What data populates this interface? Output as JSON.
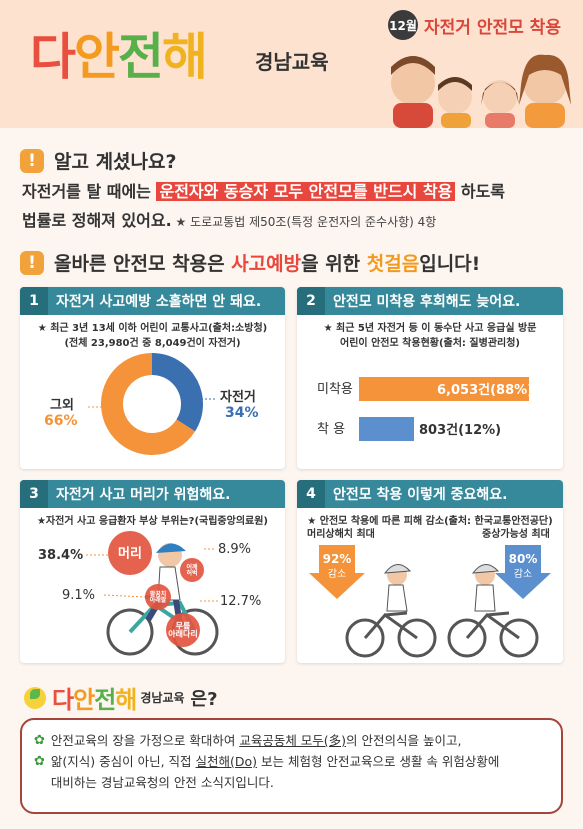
{
  "header": {
    "logo": [
      "다",
      "안",
      "전",
      "해"
    ],
    "logo_sub": "경남교육",
    "month": "12월",
    "month_title": "자전거 안전모 착용"
  },
  "section1": {
    "icon": "warning-icon",
    "title": "알고 계셨나요?",
    "line1_pre": "자전거를 탈 때에는 ",
    "line1_hl": "운전자와 동승자 모두 안전모를 반드시 착용",
    "line1_post": " 하도록",
    "line2": "법률로 정해져 있어요.",
    "line2_note": " ★ 도로교통법 제50조(특정 운전자의 준수사항) 4항"
  },
  "section2": {
    "icon": "warning-icon",
    "title_pre": "올바른 안전모 착용은 ",
    "title_red": "사고예방",
    "title_mid": "을 위한 ",
    "title_org": "첫걸음",
    "title_post": "입니다!"
  },
  "cards": [
    {
      "num": "1",
      "title": "자전거 사고예방 소홀하면 안 돼요.",
      "note1": "★ 최근 3년 13세 이하 어린이 교통사고(출처:소방청)",
      "note2": "(전체 23,980건 중 8,049건이 자전거)"
    },
    {
      "num": "2",
      "title": "안전모 미착용 후회해도 늦어요.",
      "note1": "★ 최근 5년 자전거 등 이 동수단 사고 응급실 방문",
      "note2": "어린이 안전모 착용현황(출처: 질병관리청)"
    },
    {
      "num": "3",
      "title": "자전거 사고 머리가 위험해요.",
      "note1": "★자전거 사고 응급환자 부상 부위는?(국립중앙의료원)"
    },
    {
      "num": "4",
      "title": "안전모 착용 이렇게 중요해요.",
      "note1": "★ 안전모 착용에 따른 피해 감소(출처: 한국교통안전공단)"
    }
  ],
  "chart_data": [
    {
      "type": "pie",
      "categories": [
        "자전거",
        "그외"
      ],
      "values": [
        34,
        66
      ],
      "labels": [
        "자전거",
        "그외"
      ],
      "value_labels": [
        "34%",
        "66%"
      ],
      "colors": [
        "#3a6fb0",
        "#f4933a"
      ]
    },
    {
      "type": "bar",
      "categories": [
        "미착용",
        "착 용"
      ],
      "values": [
        88,
        12
      ],
      "value_labels": [
        "6,053건(88%)",
        "803건(12%)"
      ],
      "colors": [
        "#f4933a",
        "#5b8fce"
      ]
    },
    {
      "type": "pie",
      "categories": [
        "머리",
        "어깨 허벅",
        "팔꿈치 아래팔",
        "무릎 아래다리"
      ],
      "values": [
        38.4,
        8.9,
        9.1,
        12.7
      ],
      "value_labels": [
        "38.4%",
        "8.9%",
        "9.1%",
        "12.7%"
      ],
      "labels": [
        "머리",
        "어깨\n허벅",
        "팔꿈치\n아래팔",
        "무릎\n아래다리"
      ]
    },
    {
      "type": "bar",
      "categories": [
        "머리상해치 최대",
        "중상가능성 최대"
      ],
      "values": [
        92,
        80
      ],
      "value_labels": [
        "92%",
        "80%"
      ],
      "sub_labels": [
        "감소",
        "감소"
      ],
      "colors": [
        "#f4933a",
        "#5b8fce"
      ]
    }
  ],
  "bottom": {
    "brand": [
      "다",
      "안",
      "전",
      "해"
    ],
    "brand_sub": "경남교육",
    "brand_q": "은?",
    "line1_a": "안전교육의 장을 가정으로 확대하여 ",
    "line1_u": "교육공동체 모두(多)",
    "line1_b": "의 안전의식을 높이고,",
    "line2_a": "앎(지식) 중심이 아닌, 직접 ",
    "line2_u": "실천해(Do)",
    "line2_b": " 보는 체험형 안전교육으로 생활 속 위험상황에",
    "line3": "대비하는 경남교육청의 안전 소식지입니다."
  },
  "colors": {
    "accent_red": "#e7473c",
    "accent_orange": "#f4933a",
    "accent_blue": "#5b8fce",
    "teal": "#35899a"
  }
}
